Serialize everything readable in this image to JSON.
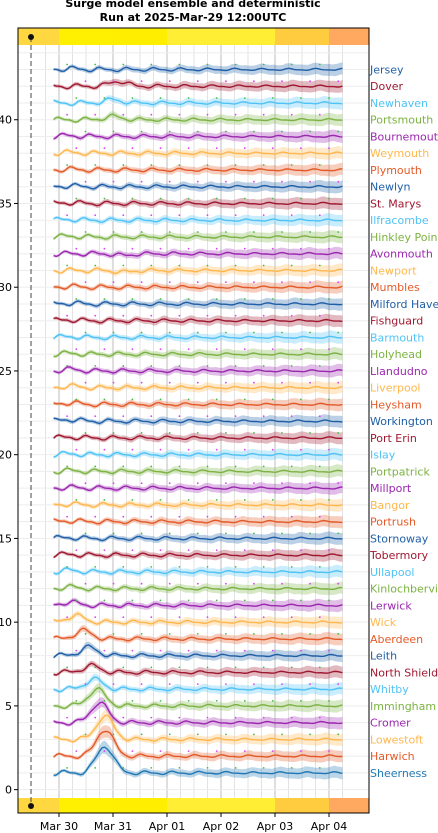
{
  "chart_data": {
    "type": "line",
    "title": [
      "Surge model ensemble and deterministic",
      "Run at 2025-Mar-29 12:00UTC"
    ],
    "xlabel": "",
    "ylabel": "",
    "x_ticks": [
      "Mar 30",
      "Mar 31",
      "Apr 01",
      "Apr 02",
      "Apr 03",
      "Apr 04"
    ],
    "x_range_days": [
      -0.25,
      5.25
    ],
    "y_ticks": [
      0,
      5,
      10,
      15,
      20,
      25,
      30,
      35,
      40
    ],
    "ylim": [
      -0.5,
      45
    ],
    "grid": true,
    "risk_bar_colors": [
      "#ffd740",
      "#ffef00",
      "#ffee00",
      "#ffee33",
      "#ffcc40",
      "#ffa860"
    ],
    "series": [
      {
        "name": "Sheerness",
        "color": "#1f77b4",
        "offset": 1,
        "peak_day": 0.85,
        "peak": 1.6
      },
      {
        "name": "Harwich",
        "color": "#e45a27",
        "offset": 2,
        "peak_day": 0.85,
        "peak": 1.6
      },
      {
        "name": "Lowestoft",
        "color": "#ffb74d",
        "offset": 3,
        "peak_day": 0.85,
        "peak": 1.4
      },
      {
        "name": "Cromer",
        "color": "#9c27b0",
        "offset": 4,
        "peak_day": 0.75,
        "peak": 1.2
      },
      {
        "name": "Immingham",
        "color": "#7cb342",
        "offset": 5,
        "peak_day": 0.7,
        "peak": 1.0
      },
      {
        "name": "Whitby",
        "color": "#4fc3f7",
        "offset": 6,
        "peak_day": 0.65,
        "peak": 0.6
      },
      {
        "name": "North Shields",
        "color": "#a01830",
        "offset": 7,
        "peak_day": 0.6,
        "peak": 0.4
      },
      {
        "name": "Leith",
        "color": "#1f5fa8",
        "offset": 8,
        "peak_day": 0.55,
        "peak": 0.5
      },
      {
        "name": "Aberdeen",
        "color": "#e45a27",
        "offset": 9,
        "peak_day": 0.45,
        "peak": 0.5
      },
      {
        "name": "Wick",
        "color": "#ffb74d",
        "offset": 10,
        "peak_day": 0.3,
        "peak": 0.4
      },
      {
        "name": "Lerwick",
        "color": "#9c27b0",
        "offset": 11,
        "peak_day": 0.2,
        "peak": 0.2
      },
      {
        "name": "Kinlochbervie",
        "color": "#7cb342",
        "offset": 12,
        "peak_day": 0.2,
        "peak": 0.1
      },
      {
        "name": "Ullapool",
        "color": "#4fc3f7",
        "offset": 13,
        "peak_day": 0.2,
        "peak": 0.1
      },
      {
        "name": "Tobermory",
        "color": "#a01830",
        "offset": 14,
        "peak_day": 0.2,
        "peak": 0.05
      },
      {
        "name": "Stornoway",
        "color": "#1f5fa8",
        "offset": 15,
        "peak_day": 0.2,
        "peak": 0.05
      },
      {
        "name": "Portrush",
        "color": "#e45a27",
        "offset": 16,
        "peak_day": 0.2,
        "peak": 0.05
      },
      {
        "name": "Bangor",
        "color": "#ffb74d",
        "offset": 17,
        "peak_day": 0.2,
        "peak": 0.05
      },
      {
        "name": "Millport",
        "color": "#9c27b0",
        "offset": 18,
        "peak_day": 0.2,
        "peak": 0.05
      },
      {
        "name": "Portpatrick",
        "color": "#7cb342",
        "offset": 19,
        "peak_day": 0.2,
        "peak": 0.05
      },
      {
        "name": "Islay",
        "color": "#4fc3f7",
        "offset": 20,
        "peak_day": 0.2,
        "peak": 0.05
      },
      {
        "name": "Port Erin",
        "color": "#a01830",
        "offset": 21,
        "peak_day": 0.2,
        "peak": 0.05
      },
      {
        "name": "Workington",
        "color": "#1f5fa8",
        "offset": 22,
        "peak_day": 0.2,
        "peak": 0.1
      },
      {
        "name": "Heysham",
        "color": "#e45a27",
        "offset": 23,
        "peak_day": 0.2,
        "peak": 0.1
      },
      {
        "name": "Liverpool",
        "color": "#ffb74d",
        "offset": 24,
        "peak_day": 0.2,
        "peak": 0.1
      },
      {
        "name": "Llandudno",
        "color": "#9c27b0",
        "offset": 25,
        "peak_day": 0.2,
        "peak": 0.1
      },
      {
        "name": "Holyhead",
        "color": "#7cb342",
        "offset": 26,
        "peak_day": 0.2,
        "peak": 0.05
      },
      {
        "name": "Barmouth",
        "color": "#4fc3f7",
        "offset": 27,
        "peak_day": 0.2,
        "peak": 0.05
      },
      {
        "name": "Fishguard",
        "color": "#a01830",
        "offset": 28,
        "peak_day": 0.2,
        "peak": 0.05
      },
      {
        "name": "Milford Haven",
        "color": "#1f5fa8",
        "offset": 29,
        "peak_day": 0.2,
        "peak": 0.05
      },
      {
        "name": "Mumbles",
        "color": "#e45a27",
        "offset": 30,
        "peak_day": 0.2,
        "peak": 0.05
      },
      {
        "name": "Newport",
        "color": "#ffb74d",
        "offset": 31,
        "peak_day": 1.2,
        "peak": -0.1
      },
      {
        "name": "Avonmouth",
        "color": "#9c27b0",
        "offset": 32,
        "peak_day": 1.2,
        "peak": -0.1
      },
      {
        "name": "Hinkley Point",
        "color": "#7cb342",
        "offset": 33,
        "peak_day": 0.2,
        "peak": 0.05
      },
      {
        "name": "Ilfracombe",
        "color": "#4fc3f7",
        "offset": 34,
        "peak_day": 0.2,
        "peak": 0.05
      },
      {
        "name": "St. Marys",
        "color": "#a01830",
        "offset": 35,
        "peak_day": 0.2,
        "peak": 0.05
      },
      {
        "name": "Newlyn",
        "color": "#1f5fa8",
        "offset": 36,
        "peak_day": 0.2,
        "peak": 0.05
      },
      {
        "name": "Plymouth",
        "color": "#e45a27",
        "offset": 37,
        "peak_day": 0.2,
        "peak": 0.05
      },
      {
        "name": "Weymouth",
        "color": "#ffb74d",
        "offset": 38,
        "peak_day": 0.2,
        "peak": 0.05
      },
      {
        "name": "Bournemouth",
        "color": "#9c27b0",
        "offset": 39,
        "peak_day": 0.2,
        "peak": 0.05
      },
      {
        "name": "Portsmouth",
        "color": "#7cb342",
        "offset": 40,
        "peak_day": 1.0,
        "peak": 0.2
      },
      {
        "name": "Newhaven",
        "color": "#4fc3f7",
        "offset": 41,
        "peak_day": 1.0,
        "peak": 0.2
      },
      {
        "name": "Dover",
        "color": "#a01830",
        "offset": 42,
        "peak_day": 1.1,
        "peak": 0.3
      },
      {
        "name": "Jersey",
        "color": "#1f5fa8",
        "offset": 43,
        "peak_day": 0.2,
        "peak": 0.05
      }
    ]
  }
}
